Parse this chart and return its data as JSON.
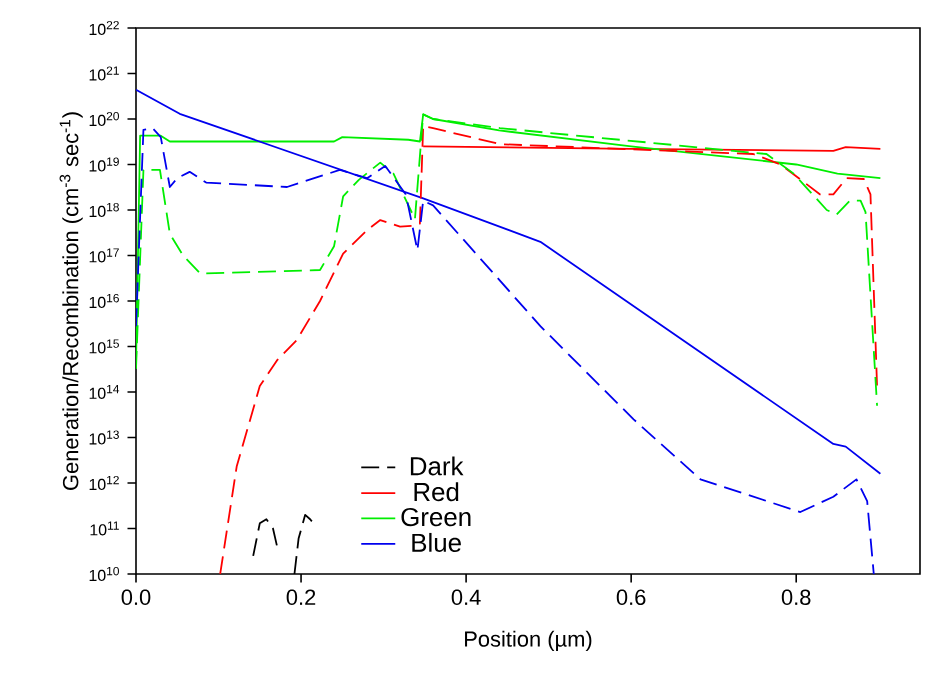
{
  "chart_data": {
    "type": "line",
    "xlabel": "Position (µm)",
    "ylabel": "Generation/Recombination (cm$^{-3}$ sec$^{-1}$)",
    "log": "y",
    "legend": "bottom",
    "marker": "none",
    "line_style": "solid",
    "xlim": [
      0,
      0.95
    ],
    "xticks": [
      {
        "value": 0,
        "label": "0.0"
      },
      0.2,
      0.4,
      0.6,
      0.8
    ],
    "ylim": [
      10000000000.0,
      1e+22
    ],
    "yticks": [
      {
        "value": 10000000000.0,
        "label": "10$^{10}$"
      },
      {
        "value": 100000000000.0,
        "label": "10$^{11}$"
      },
      {
        "value": 1000000000000.0,
        "label": "10$^{12}$"
      },
      {
        "value": 10000000000000.0,
        "label": "10$^{13}$"
      },
      {
        "value": 100000000000000.0,
        "label": "10$^{14}$"
      },
      {
        "value": 1000000000000000.0,
        "label": "10$^{15}$"
      },
      {
        "value": 1e+16,
        "label": "10$^{16}$"
      },
      {
        "value": 1e+17,
        "label": "10$^{17}$"
      },
      {
        "value": 1e+18,
        "label": "10$^{18}$"
      },
      {
        "value": 1e+19,
        "label": "10$^{19}$"
      },
      {
        "value": 1e+20,
        "label": "10$^{20}$"
      },
      {
        "value": 1e+21,
        "label": "10$^{21}$"
      },
      {
        "value": 1e+22,
        "label": "10$^{22}$"
      }
    ],
    "series": [
      {
        "name": "Dark",
        "color": "#000000",
        "line_style": "dashed",
        "x": [
          0.142,
          0.15,
          0.158,
          0.166,
          0.171,
          0.18,
          0.192,
          0.197,
          0.205,
          0.211,
          0.215
        ],
        "values": [
          25000000000.0,
          130000000000.0,
          160000000000.0,
          100000000000.0,
          40000000000.0,
          null,
          10000000000.0,
          60000000000.0,
          200000000000.0,
          160000000000.0,
          130000000000.0
        ]
      },
      {
        "name": "Red",
        "color": "#ff0000",
        "x": [
          0.348,
          0.6,
          0.845,
          0.86,
          0.902
        ],
        "values": [
          2.5e+19,
          2.2e+19,
          2e+19,
          2.4e+19,
          2.2e+19
        ]
      },
      {
        "name": "Green",
        "color": "#00ee00",
        "x": [
          0,
          0.005,
          0.03,
          0.041,
          0.24,
          0.25,
          0.33,
          0.344,
          0.348,
          0.36,
          0.44,
          0.6,
          0.8,
          0.85,
          0.902
        ],
        "values": [
          400000000000000.0,
          4.3e+19,
          4.3e+19,
          3.2e+19,
          3.2e+19,
          4e+19,
          3.5e+19,
          3.2e+19,
          1.26e+20,
          1e+20,
          5.6e+19,
          2.5e+19,
          1e+19,
          6.3e+18,
          5e+18
        ]
      },
      {
        "name": "Blue",
        "color": "#0000ee",
        "x": [
          0,
          0.053,
          0.348,
          0.49,
          0.845,
          0.86,
          0.902
        ],
        "values": [
          4.4e+20,
          1.3e+20,
          1.8e+18,
          2e+17,
          7200000000000.0,
          6300000000000.0,
          1600000000000.0
        ]
      },
      {
        "color": "#ff0000",
        "line_style": "dashed",
        "x": [
          0.102,
          0.122,
          0.15,
          0.171,
          0.195,
          0.223,
          0.251,
          0.28,
          0.296,
          0.32,
          0.336,
          0.344,
          0.348,
          0.36,
          0.441,
          0.748,
          0.781,
          0.829,
          0.845,
          0.861,
          0.882,
          0.89,
          0.898
        ],
        "values": [
          10000000000.0,
          2300000000000.0,
          135000000000000.0,
          500000000000000.0,
          1400000000000000.0,
          1e+16,
          1.1e+17,
          3.6e+17,
          6e+17,
          4.3e+17,
          4.5e+17,
          5e+17,
          7e+19,
          6.3e+19,
          2.8e+19,
          1.7e+19,
          1e+19,
          2.2e+18,
          2.2e+18,
          5e+18,
          4.8e+18,
          2.2e+18,
          130000000000000.0
        ]
      },
      {
        "color": "#00ee00",
        "line_style": "dashed",
        "x": [
          0,
          0.009,
          0.029,
          0.041,
          0.057,
          0.078,
          0.223,
          0.24,
          0.251,
          0.27,
          0.296,
          0.312,
          0.338,
          0.348,
          0.36,
          0.441,
          0.764,
          0.797,
          0.837,
          0.849,
          0.865,
          0.878,
          0.884,
          0.898
        ],
        "values": [
          320000000000000.0,
          7.6e+18,
          7.6e+18,
          3e+17,
          1e+17,
          4e+16,
          4.8e+16,
          1.6e+17,
          2e+18,
          4.6e+18,
          1.1e+19,
          6.3e+18,
          6.3e+17,
          1.26e+20,
          1e+20,
          6.3e+19,
          1.7e+19,
          6.3e+18,
          1e+18,
          8e+17,
          1.6e+18,
          1.6e+18,
          9e+17,
          50000000000000.0
        ]
      },
      {
        "color": "#0000ee",
        "line_style": "dashed",
        "x": [
          0,
          0.009,
          0.02,
          0.03,
          0.041,
          0.05,
          0.065,
          0.085,
          0.183,
          0.247,
          0.28,
          0.302,
          0.327,
          0.341,
          0.348,
          0.36,
          0.49,
          0.603,
          0.684,
          0.805,
          0.845,
          0.873,
          0.886,
          0.894
        ],
        "values": [
          2800000000000000.0,
          5.8e+19,
          6.3e+19,
          4e+19,
          3.2e+18,
          5e+18,
          6.9e+18,
          4e+18,
          3.2e+18,
          7.6e+18,
          5e+18,
          9.3e+18,
          2.2e+18,
          1.3e+17,
          1.6e+18,
          1.26e+18,
          2800000000000000.0,
          25000000000000.0,
          1200000000000.0,
          230000000000.0,
          500000000000.0,
          1200000000000.0,
          400000000000.0,
          10000000000.0
        ]
      }
    ]
  }
}
